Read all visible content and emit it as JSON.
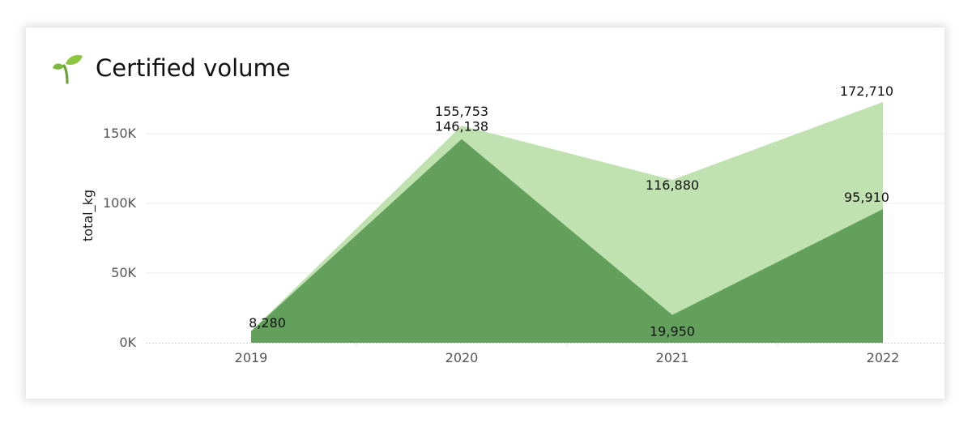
{
  "header": {
    "title": "Certified volume",
    "icon": "sprout-icon"
  },
  "chart_data": {
    "type": "area",
    "stacked": false,
    "x": [
      "2019",
      "2020",
      "2021",
      "2022"
    ],
    "ylabel": "total_kg",
    "ylim": [
      0,
      160000
    ],
    "yticks": [
      0,
      50000,
      100000,
      150000
    ],
    "ytick_labels": [
      "0K",
      "50K",
      "100K",
      "150K"
    ],
    "grid": true,
    "series": [
      {
        "values": [
          8280,
          155753,
          116880,
          172710
        ],
        "color": "#c0e2b0",
        "labels": [
          "",
          "155,753",
          "116,880",
          "172,710"
        ]
      },
      {
        "values": [
          8280,
          146138,
          19950,
          95910
        ],
        "color": "#62a05c",
        "labels": [
          "8,280",
          "146,138",
          "19,950",
          "95,910"
        ]
      }
    ]
  }
}
